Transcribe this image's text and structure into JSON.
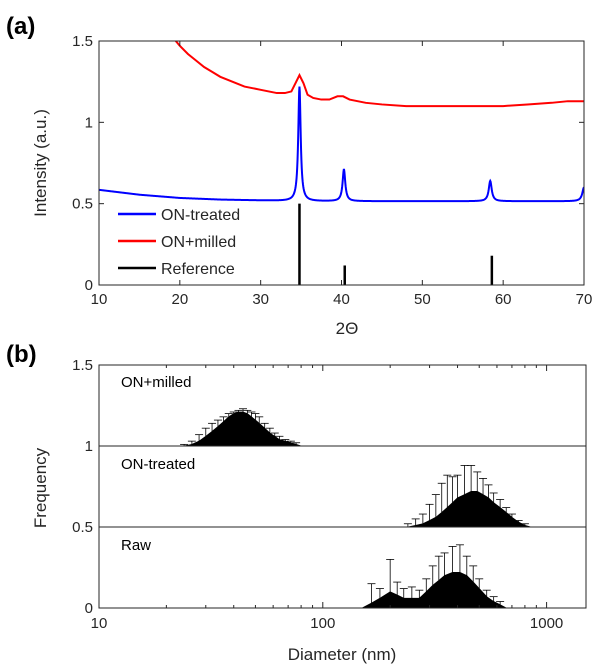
{
  "chart_data": [
    {
      "panel": "(a)",
      "type": "line",
      "xlabel": "2Θ",
      "ylabel": "Intensity (a.u.)",
      "xlim": [
        10,
        70
      ],
      "ylim": [
        0,
        1.5
      ],
      "xticks": [
        10,
        20,
        30,
        40,
        50,
        60,
        70
      ],
      "yticks": [
        0,
        0.5,
        1,
        1.5
      ],
      "ytick_labels": [
        "0",
        "0.5",
        "1",
        "1.5"
      ],
      "legend_position": "bottom-left",
      "series": [
        {
          "name": "ON-treated",
          "color": "#0000ff",
          "baseline": [
            [
              10,
              0.585
            ],
            [
              15,
              0.555
            ],
            [
              20,
              0.535
            ],
            [
              25,
              0.525
            ],
            [
              30,
              0.52
            ],
            [
              35,
              0.515
            ],
            [
              40,
              0.515
            ],
            [
              45,
              0.515
            ],
            [
              50,
              0.515
            ],
            [
              55,
              0.515
            ],
            [
              60,
              0.515
            ],
            [
              65,
              0.515
            ],
            [
              69,
              0.515
            ]
          ],
          "peaks": [
            {
              "x": 34.8,
              "y": 1.22,
              "w": 0.18
            },
            {
              "x": 40.3,
              "y": 0.71,
              "w": 0.2
            },
            {
              "x": 58.4,
              "y": 0.64,
              "w": 0.22
            },
            {
              "x": 70.0,
              "y": 0.6,
              "w": 0.25
            }
          ]
        },
        {
          "name": "ON+milled",
          "color": "#ff0000",
          "points": [
            [
              19.5,
              1.5
            ],
            [
              20,
              1.47
            ],
            [
              21,
              1.42
            ],
            [
              22,
              1.38
            ],
            [
              23,
              1.34
            ],
            [
              24,
              1.31
            ],
            [
              25,
              1.28
            ],
            [
              26,
              1.26
            ],
            [
              27,
              1.24
            ],
            [
              28,
              1.22
            ],
            [
              29,
              1.21
            ],
            [
              30,
              1.2
            ],
            [
              31,
              1.19
            ],
            [
              32,
              1.18
            ],
            [
              33,
              1.18
            ],
            [
              33.8,
              1.19
            ],
            [
              34.4,
              1.25
            ],
            [
              34.8,
              1.29
            ],
            [
              35.3,
              1.24
            ],
            [
              35.8,
              1.17
            ],
            [
              36.5,
              1.15
            ],
            [
              37.5,
              1.14
            ],
            [
              38.5,
              1.14
            ],
            [
              39.5,
              1.16
            ],
            [
              40.2,
              1.16
            ],
            [
              41,
              1.14
            ],
            [
              42,
              1.13
            ],
            [
              43,
              1.12
            ],
            [
              45,
              1.11
            ],
            [
              48,
              1.1
            ],
            [
              51,
              1.1
            ],
            [
              54,
              1.1
            ],
            [
              57,
              1.1
            ],
            [
              60,
              1.1
            ],
            [
              63,
              1.11
            ],
            [
              66,
              1.12
            ],
            [
              68,
              1.13
            ],
            [
              70,
              1.13
            ]
          ]
        },
        {
          "name": "Reference",
          "color": "#000000",
          "type": "stick",
          "points": [
            [
              34.8,
              0.5
            ],
            [
              40.4,
              0.12
            ],
            [
              58.6,
              0.18
            ]
          ]
        }
      ]
    },
    {
      "panel": "(b)",
      "type": "area",
      "xlabel": "Diameter (nm)",
      "ylabel": "Frequency",
      "xscale": "log",
      "xlim": [
        10,
        1500
      ],
      "ylim": [
        0,
        1.5
      ],
      "xticks": [
        10,
        100,
        1000
      ],
      "yticks": [
        0,
        0.5,
        1,
        1.5
      ],
      "ytick_labels": [
        "0",
        "0.5",
        "1",
        "1.5"
      ],
      "series": [
        {
          "name": "ON+milled",
          "offset": 1,
          "x": [
            24,
            26,
            28,
            30,
            32,
            34,
            36,
            38,
            40,
            42,
            44,
            46,
            48,
            50,
            52,
            55,
            58,
            61,
            64,
            68,
            72,
            76,
            80
          ],
          "values": [
            0.0,
            0.01,
            0.03,
            0.06,
            0.09,
            0.12,
            0.15,
            0.18,
            0.2,
            0.21,
            0.21,
            0.2,
            0.18,
            0.16,
            0.14,
            0.11,
            0.08,
            0.06,
            0.04,
            0.03,
            0.02,
            0.01,
            0.0
          ],
          "errors": [
            0.01,
            0.02,
            0.04,
            0.05,
            0.05,
            0.04,
            0.03,
            0.02,
            0.01,
            0.01,
            0.02,
            0.02,
            0.03,
            0.04,
            0.04,
            0.03,
            0.03,
            0.02,
            0.02,
            0.01,
            0.01,
            0.01,
            0.0
          ]
        },
        {
          "name": "ON-treated",
          "offset": 0.5,
          "x": [
            240,
            260,
            280,
            300,
            320,
            340,
            360,
            380,
            400,
            430,
            460,
            490,
            520,
            550,
            580,
            620,
            660,
            700,
            750,
            800,
            850
          ],
          "values": [
            0.0,
            0.01,
            0.02,
            0.04,
            0.06,
            0.09,
            0.12,
            0.15,
            0.18,
            0.2,
            0.22,
            0.22,
            0.2,
            0.18,
            0.15,
            0.12,
            0.09,
            0.06,
            0.03,
            0.01,
            0.0
          ],
          "errors": [
            0.02,
            0.04,
            0.06,
            0.1,
            0.14,
            0.18,
            0.2,
            0.16,
            0.14,
            0.18,
            0.16,
            0.12,
            0.1,
            0.08,
            0.06,
            0.05,
            0.03,
            0.02,
            0.01,
            0.01,
            0.0
          ]
        },
        {
          "name": "Raw",
          "offset": 0,
          "x": [
            150,
            165,
            180,
            200,
            215,
            230,
            250,
            270,
            290,
            310,
            330,
            350,
            380,
            410,
            440,
            470,
            500,
            540,
            580,
            620,
            660
          ],
          "values": [
            0.0,
            0.03,
            0.06,
            0.1,
            0.08,
            0.06,
            0.06,
            0.06,
            0.1,
            0.14,
            0.17,
            0.2,
            0.22,
            0.22,
            0.2,
            0.16,
            0.12,
            0.07,
            0.04,
            0.02,
            0.0
          ],
          "errors": [
            0.0,
            0.12,
            0.06,
            0.2,
            0.08,
            0.06,
            0.07,
            0.05,
            0.08,
            0.12,
            0.15,
            0.14,
            0.16,
            0.17,
            0.12,
            0.1,
            0.06,
            0.04,
            0.03,
            0.02,
            0.0
          ]
        }
      ]
    }
  ]
}
